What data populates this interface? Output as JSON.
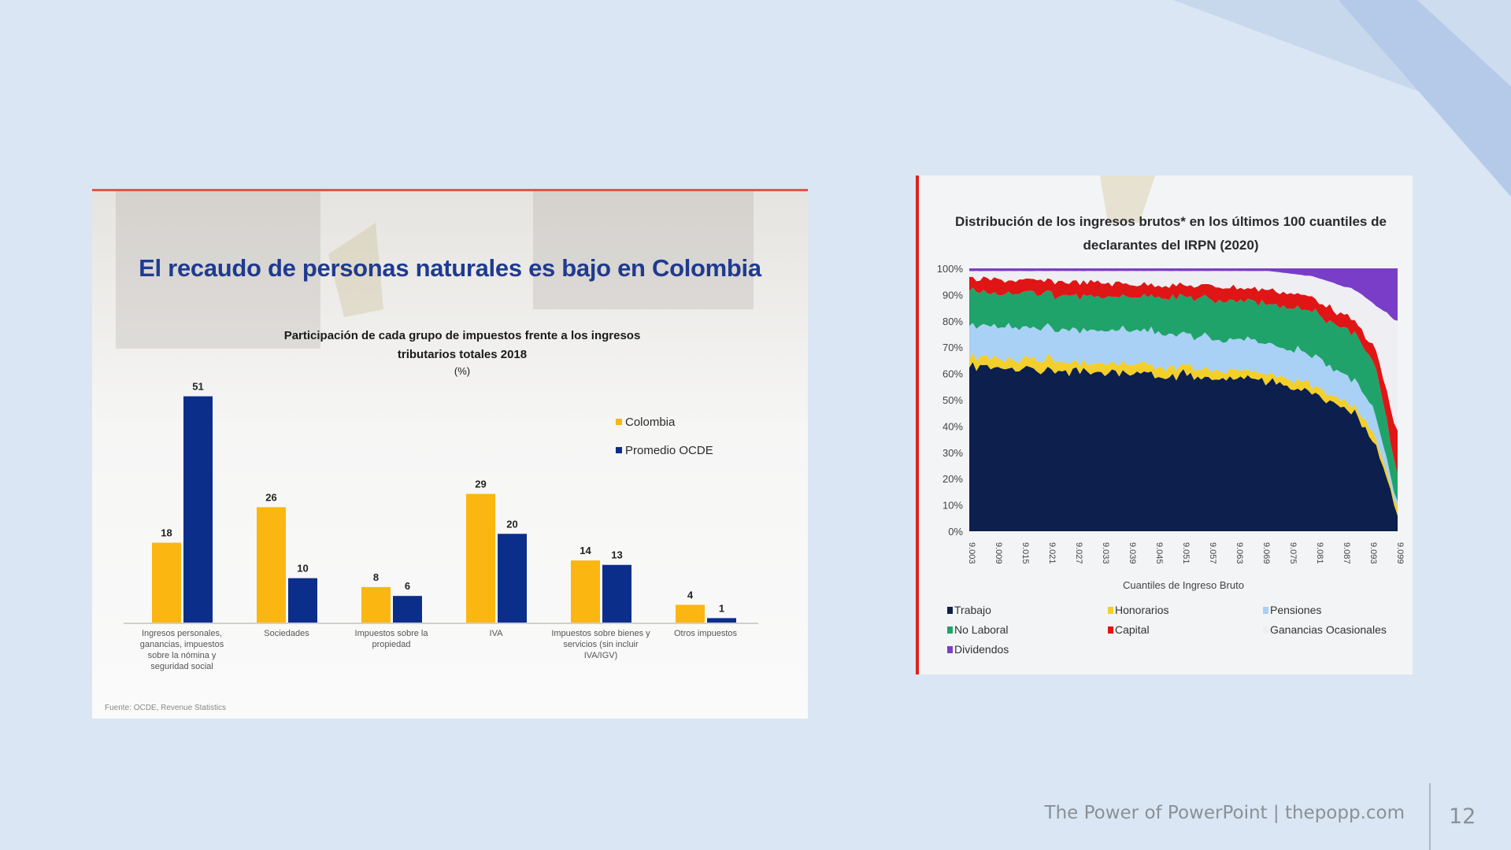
{
  "colors": {
    "background": "#dae6f3",
    "colombia": "#fbb612",
    "ocde": "#0a2e8a",
    "accent_red": "#e02020"
  },
  "left_slide": {
    "title": "El recaudo de personas naturales es bajo en Colombia",
    "subtitle_line1": "Participación de cada grupo de impuestos frente a los ingresos",
    "subtitle_line2": "tributarios totales 2018",
    "unit": "(%)",
    "source": "Fuente: OCDE, Revenue Statistics"
  },
  "right_slide": {
    "title_line1": "Distribución de los ingresos brutos* en los últimos 100 cuantiles de",
    "title_line2": "declarantes del IRPN (2020)",
    "xlabel": "Cuantiles de Ingreso Bruto"
  },
  "footer": {
    "text": "The Power of PowerPoint | thepopp.com",
    "page": "12"
  },
  "chart_data": [
    {
      "type": "bar",
      "title": "Participación de cada grupo de impuestos frente a los ingresos tributarios totales 2018",
      "ylabel": "(%)",
      "categories": [
        [
          "Ingresos personales,",
          "ganancias, impuestos",
          "sobre la nómina y",
          "seguridad social"
        ],
        [
          "Sociedades"
        ],
        [
          "Impuestos sobre la",
          "propiedad"
        ],
        [
          "IVA"
        ],
        [
          "Impuestos sobre bienes y",
          "servicios (sin incluir",
          "IVA/IGV)"
        ],
        [
          "Otros impuestos"
        ]
      ],
      "series": [
        {
          "name": "Colombia",
          "values": [
            18,
            26,
            8,
            29,
            14,
            4
          ]
        },
        {
          "name": "Promedio OCDE",
          "values": [
            51,
            10,
            6,
            20,
            13,
            1
          ]
        }
      ],
      "ylim": [
        0,
        55
      ],
      "legend": "right"
    },
    {
      "type": "area",
      "title": "Distribución de los ingresos brutos* en los últimos 100 cuantiles de declarantes del IRPN (2020)",
      "xlabel": "Cuantiles de Ingreso Bruto",
      "x_ticks": [
        "9.003",
        "9.009",
        "9.015",
        "9.021",
        "9.027",
        "9.033",
        "9.039",
        "9.045",
        "9.051",
        "9.057",
        "9.063",
        "9.069",
        "9.075",
        "9.081",
        "9.087",
        "9.093",
        "9.099"
      ],
      "y_ticks": [
        "0%",
        "10%",
        "20%",
        "30%",
        "40%",
        "50%",
        "60%",
        "70%",
        "80%",
        "90%",
        "100%"
      ],
      "ylim": [
        0,
        100
      ],
      "stacked_percent": true,
      "x_at": [
        0,
        0.2,
        0.4,
        0.6,
        0.7,
        0.8,
        0.9,
        0.95,
        1.0
      ],
      "series": [
        {
          "name": "Trabajo",
          "color": "#0c1f4d",
          "values": [
            62,
            61,
            60,
            58,
            57,
            53,
            44,
            33,
            6
          ]
        },
        {
          "name": "Honorarios",
          "color": "#f2cf2a",
          "values": [
            4,
            4,
            3,
            3,
            3,
            3,
            3,
            3,
            3
          ]
        },
        {
          "name": "Pensiones",
          "color": "#a9d0f5",
          "values": [
            12,
            12,
            13,
            12,
            12,
            11,
            10,
            9,
            2
          ]
        },
        {
          "name": "No Laboral",
          "color": "#1fa36a",
          "values": [
            13,
            13,
            13,
            15,
            15,
            17,
            18,
            18,
            10
          ]
        },
        {
          "name": "Capital",
          "color": "#e01515",
          "values": [
            5,
            5,
            5,
            5,
            5,
            5,
            5,
            6,
            16
          ]
        },
        {
          "name": "Ganancias Ocasionales",
          "color": "#eeeef3",
          "values": [
            3,
            4,
            5,
            6,
            7,
            8,
            12,
            17,
            43
          ]
        },
        {
          "name": "Dividendos",
          "color": "#7a3dc8",
          "values": [
            1,
            1,
            1,
            1,
            1,
            3,
            8,
            14,
            20
          ]
        }
      ],
      "legend": "bottom"
    }
  ]
}
